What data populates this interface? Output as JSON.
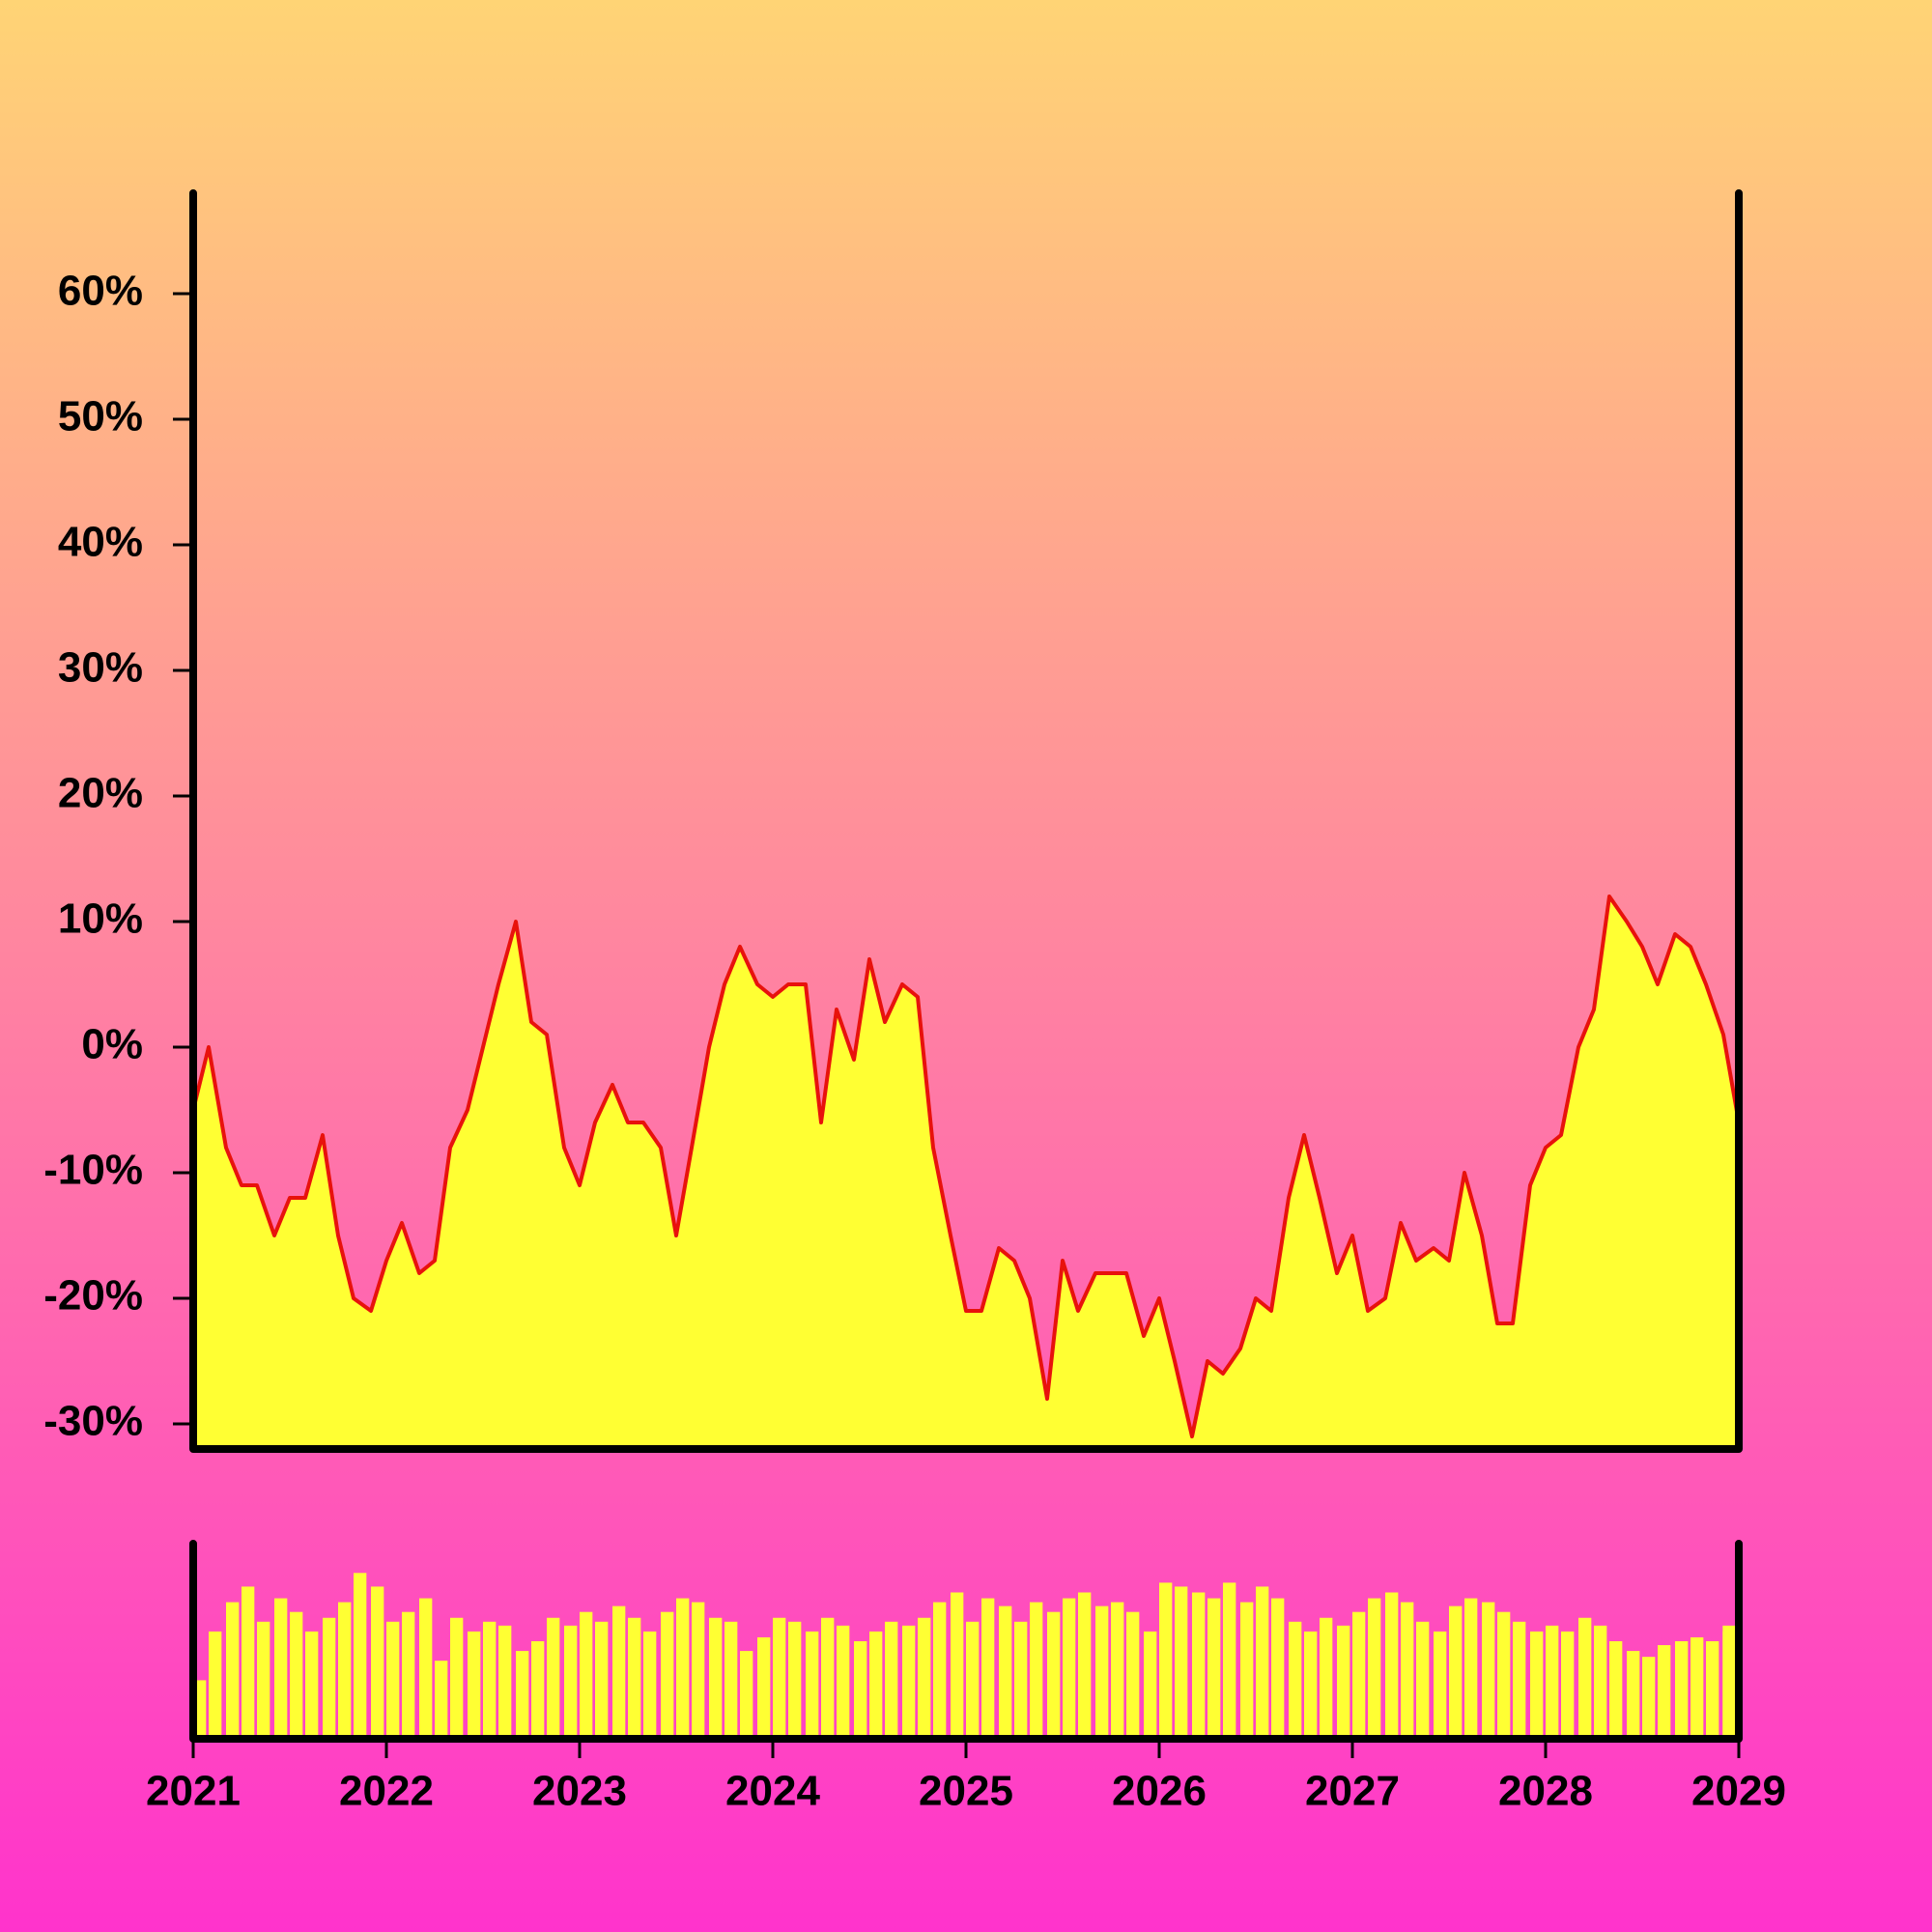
{
  "chart_data": [
    {
      "type": "area",
      "x": [
        2021,
        2021.08,
        2021.17,
        2021.25,
        2021.33,
        2021.42,
        2021.5,
        2021.58,
        2021.67,
        2021.75,
        2021.83,
        2021.92,
        2022,
        2022.08,
        2022.17,
        2022.25,
        2022.33,
        2022.42,
        2022.5,
        2022.58,
        2022.67,
        2022.75,
        2022.83,
        2022.92,
        2023,
        2023.08,
        2023.17,
        2023.25,
        2023.33,
        2023.42,
        2023.5,
        2023.58,
        2023.67,
        2023.75,
        2023.83,
        2023.92,
        2024,
        2024.08,
        2024.17,
        2024.25,
        2024.33,
        2024.42,
        2024.5,
        2024.58,
        2024.67,
        2024.75,
        2024.83,
        2024.92,
        2025,
        2025.08,
        2025.17,
        2025.25,
        2025.33,
        2025.42,
        2025.5,
        2025.58,
        2025.67,
        2025.75,
        2025.83,
        2025.92,
        2026,
        2026.08,
        2026.17,
        2026.25,
        2026.33,
        2026.42,
        2026.5,
        2026.58,
        2026.67,
        2026.75,
        2026.83,
        2026.92,
        2027,
        2027.08,
        2027.17,
        2027.25,
        2027.33,
        2027.42,
        2027.5,
        2027.58,
        2027.67,
        2027.75,
        2027.83,
        2027.92,
        2028,
        2028.08,
        2028.17,
        2028.25,
        2028.33,
        2028.42,
        2028.5,
        2028.58,
        2028.67,
        2028.75,
        2028.83,
        2028.92,
        2029
      ],
      "values": [
        -5,
        0,
        -8,
        -11,
        -11,
        -15,
        -12,
        -12,
        -7,
        -15,
        -20,
        -21,
        -17,
        -14,
        -18,
        -17,
        -8,
        -5,
        0,
        5,
        10,
        2,
        1,
        -8,
        -11,
        -6,
        -3,
        -6,
        -6,
        -8,
        -15,
        -8,
        0,
        5,
        8,
        5,
        4,
        5,
        5,
        -6,
        3,
        -1,
        7,
        2,
        5,
        4,
        -8,
        -15,
        -21,
        -21,
        -16,
        -17,
        -20,
        -28,
        -17,
        -21,
        -18,
        -18,
        -18,
        -23,
        -20,
        -25,
        -31,
        -25,
        -26,
        -24,
        -20,
        -21,
        -12,
        -7,
        -12,
        -18,
        -15,
        -21,
        -20,
        -14,
        -17,
        -16,
        -17,
        -10,
        -15,
        -22,
        -22,
        -11,
        -8,
        -7,
        0,
        3,
        12,
        10,
        8,
        5,
        9,
        8,
        5,
        1,
        -6
      ],
      "line_color": "#e8120c",
      "fill_color": "#ffff33",
      "xlim": [
        2021,
        2029
      ],
      "ylim": [
        -32,
        68
      ],
      "yticks": [
        {
          "value": -30,
          "label": "-30%"
        },
        {
          "value": -20,
          "label": "-20%"
        },
        {
          "value": -10,
          "label": "-10%"
        },
        {
          "value": 0,
          "label": "0%"
        },
        {
          "value": 10,
          "label": "10%"
        },
        {
          "value": 20,
          "label": "20%"
        },
        {
          "value": 30,
          "label": "30%"
        },
        {
          "value": 40,
          "label": "40%"
        },
        {
          "value": 50,
          "label": "50%"
        },
        {
          "value": 60,
          "label": "60%"
        }
      ],
      "grid": false
    },
    {
      "type": "bar",
      "x": [
        2021,
        2021.08,
        2021.17,
        2021.25,
        2021.33,
        2021.42,
        2021.5,
        2021.58,
        2021.67,
        2021.75,
        2021.83,
        2021.92,
        2022,
        2022.08,
        2022.17,
        2022.25,
        2022.33,
        2022.42,
        2022.5,
        2022.58,
        2022.67,
        2022.75,
        2022.83,
        2022.92,
        2023,
        2023.08,
        2023.17,
        2023.25,
        2023.33,
        2023.42,
        2023.5,
        2023.58,
        2023.67,
        2023.75,
        2023.83,
        2023.92,
        2024,
        2024.08,
        2024.17,
        2024.25,
        2024.33,
        2024.42,
        2024.5,
        2024.58,
        2024.67,
        2024.75,
        2024.83,
        2024.92,
        2025,
        2025.08,
        2025.17,
        2025.25,
        2025.33,
        2025.42,
        2025.5,
        2025.58,
        2025.67,
        2025.75,
        2025.83,
        2025.92,
        2026,
        2026.08,
        2026.17,
        2026.25,
        2026.33,
        2026.42,
        2026.5,
        2026.58,
        2026.67,
        2026.75,
        2026.83,
        2026.92,
        2027,
        2027.08,
        2027.17,
        2027.25,
        2027.33,
        2027.42,
        2027.5,
        2027.58,
        2027.67,
        2027.75,
        2027.83,
        2027.92,
        2028,
        2028.08,
        2028.17,
        2028.25,
        2028.33,
        2028.42,
        2028.5,
        2028.58,
        2028.67,
        2028.75,
        2028.83,
        2028.92,
        2029
      ],
      "values": [
        30,
        55,
        70,
        78,
        60,
        72,
        65,
        55,
        62,
        70,
        85,
        78,
        60,
        65,
        72,
        40,
        62,
        55,
        60,
        58,
        45,
        50,
        62,
        58,
        65,
        60,
        68,
        62,
        55,
        65,
        72,
        70,
        62,
        60,
        45,
        52,
        62,
        60,
        55,
        62,
        58,
        50,
        55,
        60,
        58,
        62,
        70,
        75,
        60,
        72,
        68,
        60,
        70,
        65,
        72,
        75,
        68,
        70,
        65,
        55,
        80,
        78,
        75,
        72,
        80,
        70,
        78,
        72,
        60,
        55,
        62,
        58,
        65,
        72,
        75,
        70,
        60,
        55,
        68,
        72,
        70,
        65,
        60,
        55,
        58,
        55,
        62,
        58,
        50,
        45,
        42,
        48,
        50,
        52,
        50,
        55,
        58
      ],
      "color": "#ffff33",
      "xlim": [
        2021,
        2029
      ],
      "ylim": [
        0,
        100
      ],
      "xticks": [
        2021,
        2022,
        2023,
        2024,
        2025,
        2026,
        2027,
        2028,
        2029
      ]
    }
  ]
}
